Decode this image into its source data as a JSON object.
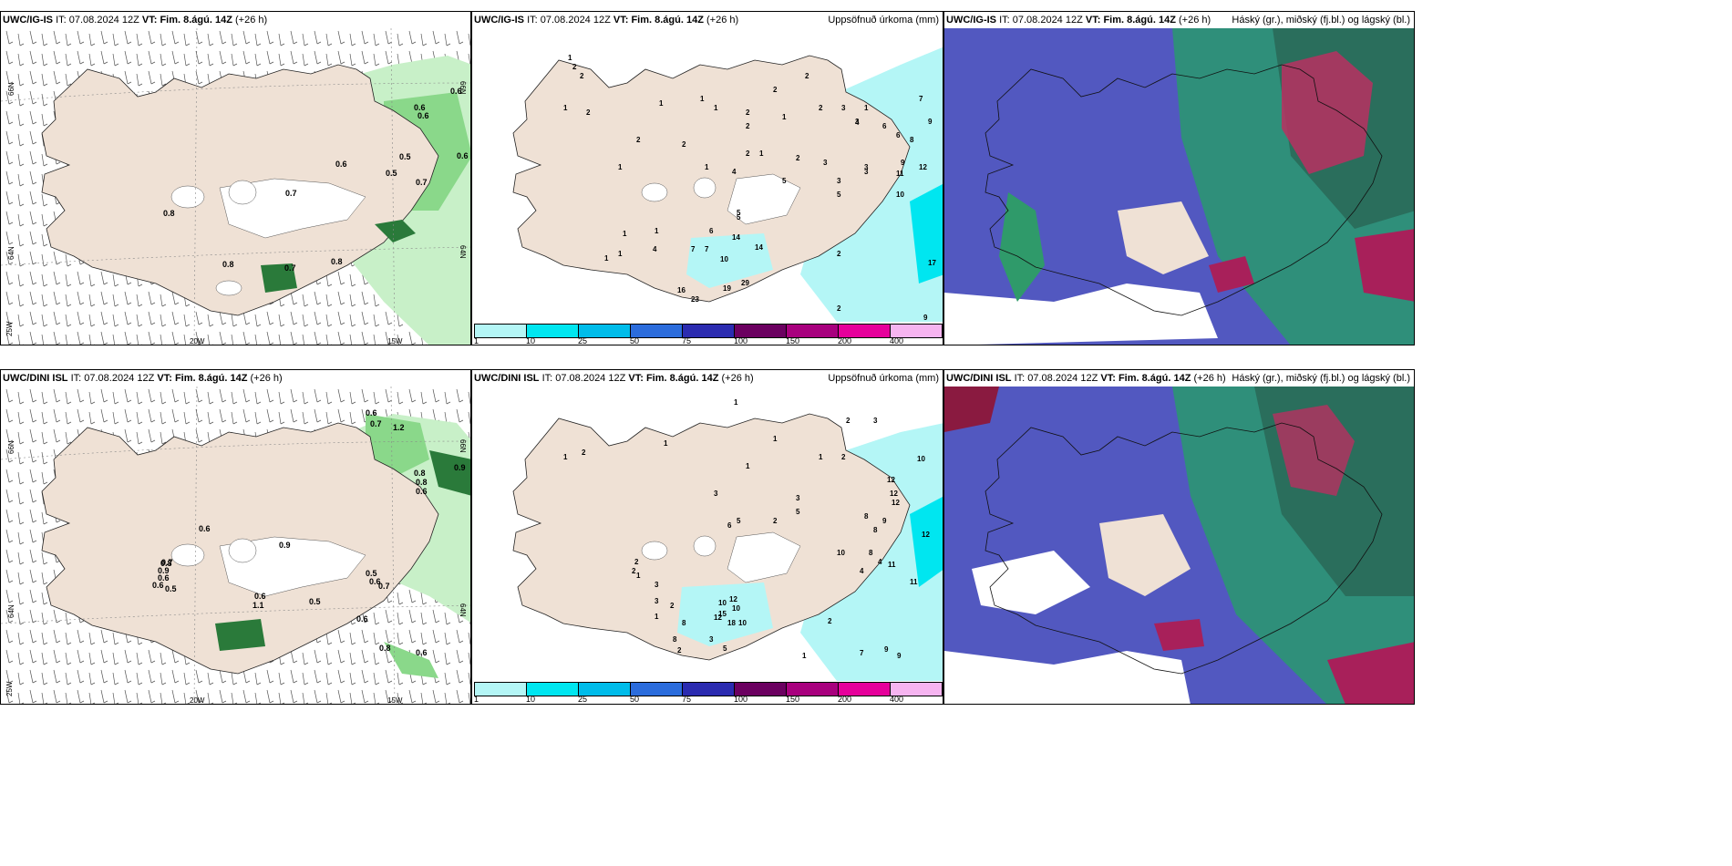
{
  "panels": {
    "p1": {
      "model": "UWC/IG-IS",
      "it_label": "IT:",
      "it_value": "07.08.2024 12Z",
      "vt_label": "VT:",
      "vt_value": "Fim. 8.ágú. 14Z",
      "lead": "(+26 h)",
      "right_title": ""
    },
    "p2": {
      "model": "UWC/IG-IS",
      "it_label": "IT:",
      "it_value": "07.08.2024 12Z",
      "vt_label": "VT:",
      "vt_value": "Fim. 8.ágú. 14Z",
      "lead": "(+26 h)",
      "right_title": "Uppsöfnuð úrkoma (mm)"
    },
    "p3": {
      "model": "UWC/IG-IS",
      "it_label": "IT:",
      "it_value": "07.08.2024 12Z",
      "vt_label": "VT:",
      "vt_value": "Fim. 8.ágú. 14Z",
      "lead": "(+26 h)",
      "right_title": "Háský (gr.), miðský (fj.bl.) og lágský (bl.)"
    },
    "p4": {
      "model": "UWC/DINI ISL",
      "it_label": "IT:",
      "it_value": "07.08.2024 12Z",
      "vt_label": "VT:",
      "vt_value": "Fim. 8.ágú. 14Z",
      "lead": "(+26 h)",
      "right_title": ""
    },
    "p5": {
      "model": "UWC/DINI ISL",
      "it_label": "IT:",
      "it_value": "07.08.2024 12Z",
      "vt_label": "VT:",
      "vt_value": "Fim. 8.ágú. 14Z",
      "lead": "(+26 h)",
      "right_title": "Uppsöfnuð úrkoma (mm)"
    },
    "p6": {
      "model": "UWC/DINI ISL",
      "it_label": "IT:",
      "it_value": "07.08.2024 12Z",
      "vt_label": "VT:",
      "vt_value": "Fim. 8.ágú. 14Z",
      "lead": "(+26 h)",
      "right_title": "Háský (gr.), miðský (fj.bl.) og lágský (bl.)"
    }
  },
  "axis_labels": {
    "lat66": "66N",
    "lat64": "64N",
    "lon25": "25W",
    "lon20": "20W",
    "lon15": "15W"
  },
  "colorbar": {
    "labels": [
      "1",
      "10",
      "25",
      "50",
      "75",
      "100",
      "150",
      "200",
      "400"
    ],
    "colors": [
      "#b4f6f6",
      "#00e6f0",
      "#00bcea",
      "#2b6cdc",
      "#2b2bb0",
      "#6b0060",
      "#a8007e",
      "#e6009b",
      "#f6b4f0"
    ]
  },
  "colors": {
    "land": "#efe1d5",
    "snow": "#ffffff",
    "precip_light": "#b4f6f6",
    "green_light": "#c8f0c8",
    "green_mid": "#8ad88a",
    "green_dark": "#2a7a3a",
    "cloud_low": "#5258c0",
    "cloud_mid": "#2f8f7a",
    "cloud_high": "#b83060"
  },
  "wind_values": {
    "p1": [
      "0.6",
      "0.6",
      "0.6",
      "0.6",
      "0.6",
      "0.5",
      "0.5",
      "0.7",
      "0.7",
      "0.8",
      "0.8",
      "0.7",
      "0.8"
    ],
    "p4": [
      "0.6",
      "1.2",
      "0.7",
      "0.9",
      "0.8",
      "0.8",
      "0.6",
      "0.6",
      "0.9",
      "0.5",
      "0.6",
      "0.7",
      "0.6",
      "1.1",
      "0.8",
      "0.5",
      "0.6",
      "0.8",
      "0.6",
      "0.6",
      "0.7",
      "0.9",
      "0.6",
      "0.5"
    ]
  },
  "precip_values": {
    "p2": [
      "1",
      "2",
      "2",
      "2",
      "1",
      "1",
      "1",
      "1",
      "2",
      "2",
      "2",
      "3",
      "2",
      "2",
      "1",
      "1",
      "2",
      "2",
      "2",
      "1",
      "4",
      "1",
      "2",
      "3",
      "5",
      "1",
      "3",
      "3",
      "6",
      "5",
      "7",
      "7",
      "10",
      "14",
      "14",
      "16",
      "19",
      "29",
      "23",
      "2",
      "1",
      "1",
      "3",
      "3",
      "4",
      "5",
      "6",
      "6",
      "8",
      "9",
      "7",
      "9",
      "10",
      "11",
      "17",
      "2",
      "9",
      "12",
      "1",
      "5",
      "4",
      "1"
    ],
    "p5": [
      "1",
      "1",
      "1",
      "2",
      "1",
      "1",
      "2",
      "3",
      "2",
      "1",
      "3",
      "6",
      "5",
      "3",
      "5",
      "2",
      "1",
      "2",
      "2",
      "3",
      "2",
      "10",
      "12",
      "15",
      "10",
      "18",
      "10",
      "12",
      "8",
      "8",
      "2",
      "3",
      "5",
      "2",
      "1",
      "7",
      "9",
      "9",
      "8",
      "8",
      "9",
      "4",
      "4",
      "12",
      "10",
      "12",
      "12",
      "12",
      "11",
      "11",
      "8",
      "10",
      "3",
      "1"
    ]
  }
}
